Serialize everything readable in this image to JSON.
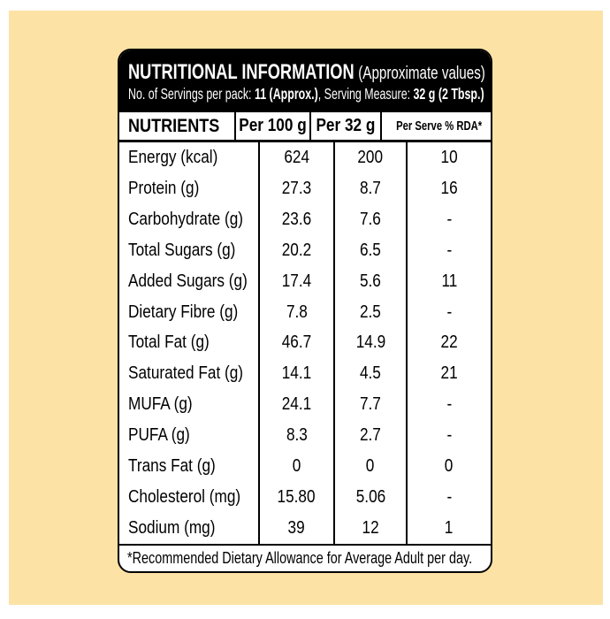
{
  "header": {
    "title": "NUTRITIONAL INFORMATION",
    "approx_note": "(Approximate values)",
    "servings_label": "No. of Servings per pack: ",
    "servings_value": "11 (Approx.)",
    "measure_label": ", Serving Measure: ",
    "measure_value": "32 g (2 Tbsp.)"
  },
  "table": {
    "columns": {
      "nutrients": "NUTRIENTS",
      "per_100g": "Per 100 g",
      "per_32g": "Per 32 g",
      "per_serve": "Per Serve % RDA*"
    },
    "rows": [
      {
        "nutrient": "Energy (kcal)",
        "per100": "624",
        "per32": "200",
        "rda": "10"
      },
      {
        "nutrient": "Protein (g)",
        "per100": "27.3",
        "per32": "8.7",
        "rda": "16"
      },
      {
        "nutrient": "Carbohydrate (g)",
        "per100": "23.6",
        "per32": "7.6",
        "rda": "-"
      },
      {
        "nutrient": "Total Sugars (g)",
        "per100": "20.2",
        "per32": "6.5",
        "rda": "-"
      },
      {
        "nutrient": "Added Sugars (g)",
        "per100": "17.4",
        "per32": "5.6",
        "rda": "11"
      },
      {
        "nutrient": "Dietary Fibre (g)",
        "per100": "7.8",
        "per32": "2.5",
        "rda": "-"
      },
      {
        "nutrient": "Total Fat (g)",
        "per100": "46.7",
        "per32": "14.9",
        "rda": "22"
      },
      {
        "nutrient": "Saturated Fat (g)",
        "per100": "14.1",
        "per32": "4.5",
        "rda": "21"
      },
      {
        "nutrient": "MUFA (g)",
        "per100": "24.1",
        "per32": "7.7",
        "rda": "-"
      },
      {
        "nutrient": "PUFA (g)",
        "per100": "8.3",
        "per32": "2.7",
        "rda": "-"
      },
      {
        "nutrient": "Trans Fat (g)",
        "per100": "0",
        "per32": "0",
        "rda": "0"
      },
      {
        "nutrient": "Cholesterol (mg)",
        "per100": "15.80",
        "per32": "5.06",
        "rda": "-"
      },
      {
        "nutrient": "Sodium (mg)",
        "per100": "39",
        "per32": "12",
        "rda": "1"
      }
    ]
  },
  "footnote": "*Recommended Dietary Allowance for Average Adult per day.",
  "colors": {
    "background": "#FCE2A5",
    "header_bg": "#000000",
    "card_bg": "#FFFFFF",
    "text": "#000000",
    "header_text": "#FFFFFF"
  }
}
